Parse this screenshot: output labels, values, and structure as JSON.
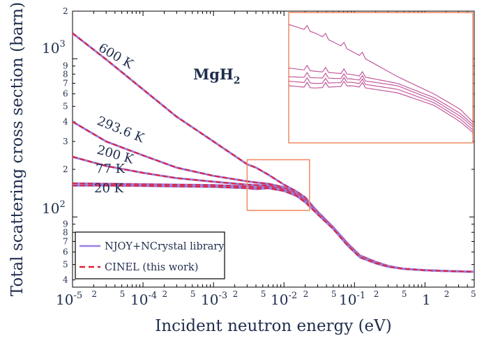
{
  "chart_data": {
    "type": "line",
    "title": "",
    "xlabel": "Incident neutron energy (eV)",
    "ylabel": "Total scattering cross section (barn)",
    "x_scale": "log",
    "y_scale": "log",
    "xlim": [
      1e-05,
      5
    ],
    "ylim": [
      36,
      2000
    ],
    "x_major_ticks": [
      "10",
      "10",
      "10",
      "10",
      "10",
      "1"
    ],
    "x_major_exponents": [
      "-5",
      "-4",
      "-3",
      "-2",
      "-1",
      ""
    ],
    "y_major_ticks": [
      "10",
      "10"
    ],
    "y_major_exponents": [
      "3",
      "2"
    ],
    "material_label": "MgH",
    "material_subscript": "2",
    "colors": {
      "reference": "#9a7fe0",
      "this_work": "#e0203a",
      "inset_box": "#f0906a",
      "text": "#1f2d4d",
      "inset_lines": "#c25a9c"
    },
    "legend": {
      "placement": "bottom-left",
      "entries": [
        "NJOY+NCrystal library",
        "CINEL (this work)"
      ]
    },
    "temperature_labels": [
      "600 K",
      "293.6 K",
      "200 K",
      "77 K",
      "20 K"
    ],
    "x": [
      1e-05,
      3e-05,
      0.0001,
      0.0003,
      0.001,
      0.003,
      0.004,
      0.006,
      0.01,
      0.015,
      0.02,
      0.03,
      0.05,
      0.08,
      0.12,
      0.2,
      0.3,
      0.5,
      1,
      2,
      5
    ],
    "series": [
      {
        "name": "600 K",
        "values": [
          1450,
          990,
          640,
          430,
          300,
          215,
          205,
          185,
          160,
          145,
          133,
          108,
          86,
          68,
          57,
          52,
          49,
          47,
          46,
          45.5,
          45
        ]
      },
      {
        "name": "293.6 K",
        "values": [
          400,
          300,
          245,
          205,
          182,
          168,
          165,
          162,
          154,
          142,
          130,
          108,
          86,
          67,
          56,
          51,
          48.5,
          47,
          46,
          45.5,
          45
        ]
      },
      {
        "name": "200 K",
        "values": [
          240,
          210,
          190,
          176,
          167,
          160,
          159,
          158,
          152,
          140,
          128,
          107,
          85,
          67,
          56,
          51,
          48.5,
          47,
          46,
          45.5,
          45
        ]
      },
      {
        "name": "77 K",
        "values": [
          163,
          162,
          161,
          160,
          159,
          156,
          154,
          155,
          149,
          138,
          126,
          105,
          84,
          66,
          55.5,
          51,
          48.5,
          47,
          46,
          45.5,
          45
        ]
      },
      {
        "name": "20 K",
        "values": [
          158,
          158,
          157,
          156,
          155,
          152,
          150,
          152,
          146,
          136,
          124,
          104,
          84,
          66,
          55.5,
          51,
          48.5,
          47,
          46,
          45.5,
          45
        ]
      }
    ],
    "inset_region": {
      "x_range": [
        0.003,
        0.023
      ],
      "y_range": [
        110,
        230
      ]
    }
  }
}
